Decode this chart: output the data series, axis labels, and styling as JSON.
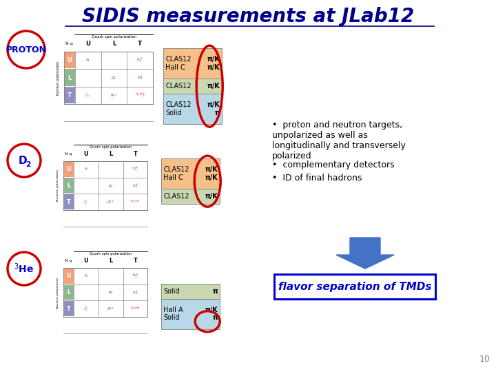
{
  "title": "SIDIS measurements at JLab12",
  "title_color": "#00008B",
  "title_fontsize": 20,
  "bg_color": "#ffffff",
  "circle_color": "#cc0000",
  "label_color": "#0000cc",
  "bullet_points": [
    "proton and neutron targets,\nunpolarized as well as\nlongitudinally and transversely\npolarized",
    "complementary detectors",
    "ID of final hadrons"
  ],
  "flavor_text": "flavor separation of TMDs",
  "flavor_color": "#0000cc",
  "flavor_box_color": "#0000cc",
  "arrow_color": "#4472c4",
  "page_number": "10",
  "row_colors": [
    "#f4a07a",
    "#8db88d",
    "#9090c0"
  ],
  "proton_rows": [
    {
      "detector": "CLAS12\nHall C",
      "hadrons": "π/K\nπ/K",
      "color": "#f5c08a"
    },
    {
      "detector": "CLAS12",
      "hadrons": "π/K",
      "color": "#c8d8b0"
    },
    {
      "detector": "CLAS12\nSolid",
      "hadrons": "π/K\nπ",
      "color": "#b8d8e8"
    }
  ],
  "d2_rows": [
    {
      "detector": "CLAS12\nHall C",
      "hadrons": "π/K\nπ/K",
      "color": "#f5c08a"
    },
    {
      "detector": "CLAS12",
      "hadrons": "π/K",
      "color": "#c8d8b0"
    }
  ],
  "he3_rows": [
    {
      "detector": "Solid",
      "hadrons": "π",
      "color": "#c8d8b0"
    },
    {
      "detector": "Hall A\nSolid",
      "hadrons": "π/K\nπ",
      "color": "#b8d8e8"
    }
  ]
}
